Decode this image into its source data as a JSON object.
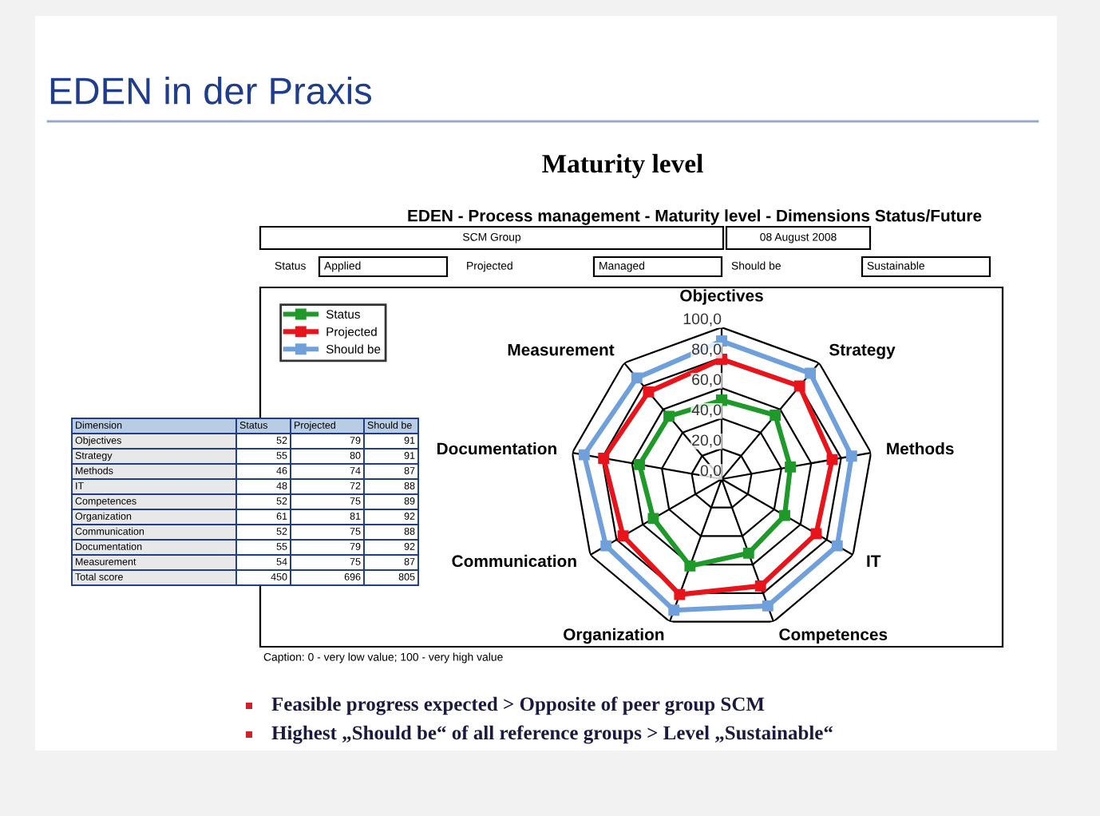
{
  "chart_data": [
    {
      "type": "radar",
      "title": "EDEN in der Praxis",
      "subtitle": "Maturity level",
      "categories": [
        "Objectives",
        "Strategy",
        "Methods",
        "IT",
        "Competences",
        "Organization",
        "Communication",
        "Documentation",
        "Measurement"
      ],
      "series": [
        {
          "name": "Status",
          "color": "#1f9a2a",
          "values": [
            52,
            55,
            46,
            48,
            52,
            61,
            52,
            55,
            54
          ]
        },
        {
          "name": "Projected",
          "color": "#e8141c",
          "values": [
            79,
            80,
            74,
            72,
            75,
            81,
            75,
            79,
            75
          ]
        },
        {
          "name": "Should be",
          "color": "#6fa0dc",
          "values": [
            91,
            91,
            87,
            88,
            89,
            92,
            88,
            92,
            87
          ]
        }
      ],
      "ylim": [
        0,
        100
      ],
      "yticks": [
        {
          "value": 0,
          "label": "0,0"
        },
        {
          "value": 20,
          "label": "20,0"
        },
        {
          "value": 40,
          "label": "40,0"
        },
        {
          "value": 60,
          "label": "60,0"
        },
        {
          "value": 80,
          "label": "80,0"
        },
        {
          "value": 100,
          "label": "100,0"
        }
      ],
      "grid": true,
      "legend": "top left",
      "marker": "square",
      "line_style": "solid",
      "annotations": [
        "EDEN - Process management - Maturity level - Dimensions Status/Future",
        "SCM Group",
        "08 August 2008",
        "Status",
        "Applied",
        "Projected",
        "Managed",
        "Should be",
        "Sustainable",
        "Caption: 0 - very low value; 100 - very high value",
        "Feasible progress expected > Opposite of peer group SCM",
        "Highest „Should be“ of all reference groups > Level „Sustainable“"
      ]
    },
    {
      "type": "other",
      "xlabel": "Dimension",
      "categories": [
        "Objectives",
        "Strategy",
        "Methods",
        "IT",
        "Competences",
        "Organization",
        "Communication",
        "Documentation",
        "Measurement"
      ],
      "series": [
        {
          "name": "Status",
          "values": [
            52,
            55,
            46,
            48,
            52,
            61,
            52,
            55,
            54
          ]
        },
        {
          "name": "Projected",
          "values": [
            79,
            80,
            74,
            72,
            75,
            81,
            75,
            79,
            75
          ]
        },
        {
          "name": "Should be",
          "values": [
            91,
            91,
            87,
            88,
            89,
            92,
            88,
            92,
            87
          ]
        }
      ],
      "data_labels": true,
      "annotations": [
        "Total score",
        "450",
        "696",
        "805"
      ]
    }
  ]
}
